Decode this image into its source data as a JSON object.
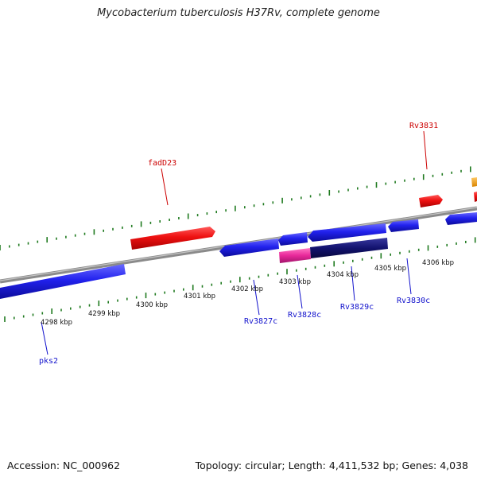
{
  "title": "Mycobacterium tuberculosis H37Rv, complete genome",
  "footer": {
    "accession": "Accession: NC_000962",
    "stats": "Topology: circular; Length: 4,411,532 bp; Genes: 4,038"
  },
  "genome_map": {
    "unit_label": "kbp",
    "ruler_labels": [
      "4298 kbp",
      "4299 kbp",
      "4300 kbp",
      "4301 kbp",
      "4302 kbp",
      "4303 kbp",
      "4304 kbp",
      "4305 kbp",
      "4306 kbp"
    ],
    "forward_genes": [
      {
        "label": "fadD23",
        "start_kbp": 4300.0,
        "end_kbp": 4301.8,
        "color": "#ee1111",
        "label_color": "#cc0000"
      },
      {
        "label": "Rv3831",
        "start_kbp": 4305.8,
        "end_kbp": 4306.3,
        "color": "#ee1111",
        "label_color": "#cc0000"
      }
    ],
    "reverse_genes": [
      {
        "label": "pks2",
        "start_kbp": 4297.2,
        "end_kbp": 4299.8,
        "color": "#2222ee",
        "label_color": "#1111cc"
      },
      {
        "label": "Rv3827c",
        "start_kbp": 4301.7,
        "end_kbp": 4302.9,
        "color": "#2222ee",
        "label_color": "#1111cc"
      },
      {
        "label": "Rv3828c",
        "start_kbp": 4302.9,
        "end_kbp": 4303.5,
        "color": "#2222ee",
        "label_color": "#1111cc"
      },
      {
        "label": "Rv3829c",
        "start_kbp": 4303.5,
        "end_kbp": 4305.5,
        "color": "#2222ee",
        "label_color": "#1111cc"
      },
      {
        "label": "Rv3830c",
        "start_kbp": 4305.5,
        "end_kbp": 4306.1,
        "color": "#2222ee",
        "label_color": "#1111cc"
      }
    ],
    "colors": {
      "backbone": "#8a8a8a",
      "tick": "#1f7a1f",
      "forward_cds": "#ee1111",
      "reverse_cds": "#2222ee",
      "pink_feature": "#e8289a",
      "navy_feature": "#12126e",
      "orange_feature": "#f0a020"
    }
  }
}
